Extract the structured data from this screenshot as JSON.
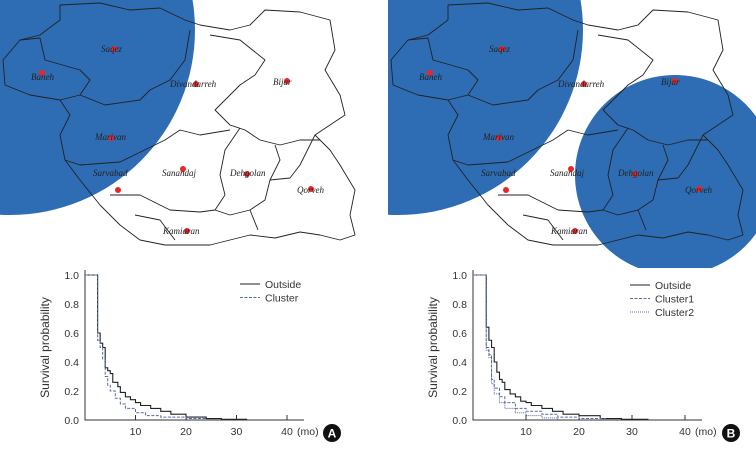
{
  "colors": {
    "cluster_circle": "#2e6db4",
    "city_dot": "#e8262a",
    "curve": "#222222",
    "cluster_curve": "#5a6aa8"
  },
  "maps": [
    {
      "panel": "A",
      "cities": [
        {
          "name": "Saqez"
        },
        {
          "name": "Baneh"
        },
        {
          "name": "Divandarreh"
        },
        {
          "name": "Bijar"
        },
        {
          "name": "Marivan"
        },
        {
          "name": "Sarvabad"
        },
        {
          "name": "Sanandaj"
        },
        {
          "name": "Dehgolan"
        },
        {
          "name": "Qorveh"
        },
        {
          "name": "Kamiaran"
        }
      ],
      "clusters": 1
    },
    {
      "panel": "B",
      "cities": [
        {
          "name": "Saqez"
        },
        {
          "name": "Baneh"
        },
        {
          "name": "Divandarreh"
        },
        {
          "name": "Bijar"
        },
        {
          "name": "Marivan"
        },
        {
          "name": "Sarvabad"
        },
        {
          "name": "Sanandaj"
        },
        {
          "name": "Dehgolan"
        },
        {
          "name": "Qorveh"
        },
        {
          "name": "Kamiaran"
        }
      ],
      "clusters": 2
    }
  ],
  "chart_data": [
    {
      "type": "line",
      "panel": "A",
      "xlabel": "(mo)",
      "ylabel": "Survival probability",
      "xlim": [
        0,
        42
      ],
      "ylim": [
        0,
        1
      ],
      "xticks": [
        10,
        20,
        30,
        40
      ],
      "yticks": [
        "0.0",
        "0.2",
        "0.4",
        "0.6",
        "0.8",
        "1.0"
      ],
      "legend_position": "top-right",
      "series": [
        {
          "name": "Outside",
          "style": "solid",
          "points": [
            [
              0,
              1
            ],
            [
              2.5,
              1
            ],
            [
              2.5,
              0.6
            ],
            [
              3,
              0.53
            ],
            [
              3.5,
              0.5
            ],
            [
              4,
              0.36
            ],
            [
              4.5,
              0.34
            ],
            [
              5,
              0.32
            ],
            [
              5.5,
              0.26
            ],
            [
              6.5,
              0.23
            ],
            [
              7,
              0.19
            ],
            [
              8,
              0.16
            ],
            [
              9,
              0.14
            ],
            [
              10,
              0.12
            ],
            [
              11,
              0.1
            ],
            [
              13,
              0.08
            ],
            [
              15,
              0.06
            ],
            [
              17,
              0.04
            ],
            [
              20,
              0.02
            ],
            [
              24,
              0.01
            ],
            [
              27,
              0.005
            ],
            [
              32,
              0
            ]
          ]
        },
        {
          "name": "Cluster",
          "style": "dashed",
          "points": [
            [
              0,
              1
            ],
            [
              2.5,
              1
            ],
            [
              2.5,
              0.55
            ],
            [
              3,
              0.5
            ],
            [
              3.5,
              0.42
            ],
            [
              4,
              0.3
            ],
            [
              4.5,
              0.24
            ],
            [
              5,
              0.2
            ],
            [
              6,
              0.15
            ],
            [
              7,
              0.11
            ],
            [
              8,
              0.08
            ],
            [
              10,
              0.05
            ],
            [
              12,
              0.03
            ],
            [
              15,
              0.02
            ],
            [
              20,
              0.01
            ],
            [
              24,
              0
            ]
          ]
        }
      ]
    },
    {
      "type": "line",
      "panel": "B",
      "xlabel": "(mo)",
      "ylabel": "Survival probability",
      "xlim": [
        0,
        42
      ],
      "ylim": [
        0,
        1
      ],
      "xticks": [
        10,
        20,
        30,
        40
      ],
      "yticks": [
        "0.0",
        "0.2",
        "0.4",
        "0.6",
        "0.8",
        "1.0"
      ],
      "legend_position": "top-right",
      "series": [
        {
          "name": "Outside",
          "style": "solid",
          "points": [
            [
              0,
              1
            ],
            [
              2.5,
              1
            ],
            [
              2.5,
              0.64
            ],
            [
              3,
              0.55
            ],
            [
              3.5,
              0.5
            ],
            [
              4,
              0.4
            ],
            [
              4.5,
              0.33
            ],
            [
              5,
              0.28
            ],
            [
              5.5,
              0.26
            ],
            [
              6,
              0.21
            ],
            [
              7,
              0.18
            ],
            [
              8,
              0.16
            ],
            [
              9,
              0.13
            ],
            [
              10,
              0.12
            ],
            [
              11,
              0.1
            ],
            [
              13,
              0.08
            ],
            [
              15,
              0.06
            ],
            [
              17,
              0.04
            ],
            [
              20,
              0.03
            ],
            [
              24,
              0.01
            ],
            [
              28,
              0.005
            ],
            [
              33,
              0
            ]
          ]
        },
        {
          "name": "Cluster1",
          "style": "dashed",
          "points": [
            [
              0,
              1
            ],
            [
              2.5,
              1
            ],
            [
              2.5,
              0.5
            ],
            [
              3,
              0.45
            ],
            [
              3.5,
              0.28
            ],
            [
              4,
              0.22
            ],
            [
              5,
              0.16
            ],
            [
              6,
              0.12
            ],
            [
              8,
              0.08
            ],
            [
              10,
              0.06
            ],
            [
              13,
              0.04
            ],
            [
              16,
              0.02
            ],
            [
              20,
              0.01
            ],
            [
              25,
              0
            ]
          ]
        },
        {
          "name": "Cluster2",
          "style": "dotted",
          "points": [
            [
              0,
              1
            ],
            [
              2.5,
              1
            ],
            [
              2.5,
              0.48
            ],
            [
              3,
              0.43
            ],
            [
              3.5,
              0.25
            ],
            [
              4,
              0.18
            ],
            [
              5,
              0.12
            ],
            [
              6,
              0.08
            ],
            [
              8,
              0.05
            ],
            [
              10,
              0.03
            ],
            [
              13,
              0.015
            ],
            [
              16,
              0
            ]
          ]
        }
      ]
    }
  ]
}
